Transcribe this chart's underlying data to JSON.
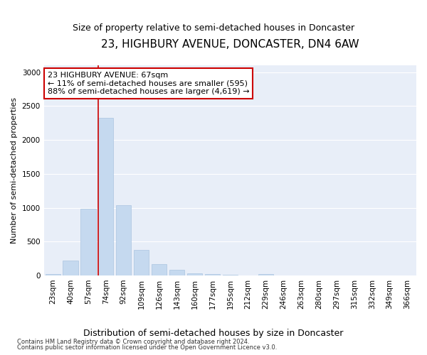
{
  "title": "23, HIGHBURY AVENUE, DONCASTER, DN4 6AW",
  "subtitle": "Size of property relative to semi-detached houses in Doncaster",
  "xlabel": "Distribution of semi-detached houses by size in Doncaster",
  "ylabel": "Number of semi-detached properties",
  "categories": [
    "23sqm",
    "40sqm",
    "57sqm",
    "74sqm",
    "92sqm",
    "109sqm",
    "126sqm",
    "143sqm",
    "160sqm",
    "177sqm",
    "195sqm",
    "212sqm",
    "229sqm",
    "246sqm",
    "263sqm",
    "280sqm",
    "297sqm",
    "315sqm",
    "332sqm",
    "349sqm",
    "366sqm"
  ],
  "values": [
    20,
    220,
    980,
    2330,
    1040,
    380,
    165,
    80,
    35,
    20,
    8,
    5,
    20,
    5,
    0,
    0,
    0,
    0,
    0,
    0,
    0
  ],
  "bar_color": "#c5d9ef",
  "bar_edge_color": "#aac4e0",
  "annotation_text": "23 HIGHBURY AVENUE: 67sqm\n← 11% of semi-detached houses are smaller (595)\n88% of semi-detached houses are larger (4,619) →",
  "annotation_box_color": "#ffffff",
  "annotation_border_color": "#cc0000",
  "vline_color": "#cc0000",
  "ylim": [
    0,
    3100
  ],
  "yticks": [
    0,
    500,
    1000,
    1500,
    2000,
    2500,
    3000
  ],
  "background_color": "#e8eef8",
  "grid_color": "#ffffff",
  "footnote1": "Contains HM Land Registry data © Crown copyright and database right 2024.",
  "footnote2": "Contains public sector information licensed under the Open Government Licence v3.0.",
  "title_fontsize": 11,
  "subtitle_fontsize": 9,
  "xlabel_fontsize": 9,
  "ylabel_fontsize": 8,
  "tick_fontsize": 7.5,
  "annot_fontsize": 8
}
